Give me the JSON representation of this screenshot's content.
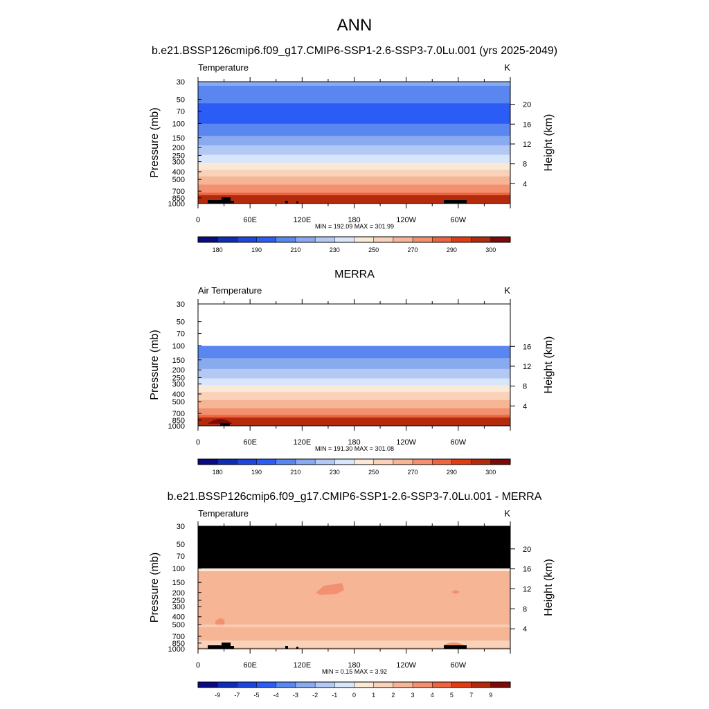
{
  "page": {
    "title": "ANN"
  },
  "chart_data": [
    {
      "type": "heatmap",
      "title": "b.e21.BSSP126cmip6.f09_g17.CMIP6-SSP1-2.6-SSP3-7.0Lu.001 (yrs 2025-2049)",
      "left_label": "Temperature",
      "units": "K",
      "ylabel": "Pressure (mb)",
      "ylabel_right": "Height (km)",
      "pressure_ticks": [
        "30",
        "50",
        "70",
        "100",
        "150",
        "200",
        "250",
        "300",
        "400",
        "500",
        "700",
        "850",
        "1000"
      ],
      "height_ticks": [
        "20",
        "16",
        "12",
        "8",
        "4"
      ],
      "x_ticks": [
        "0",
        "60E",
        "120E",
        "180",
        "120W",
        "60W"
      ],
      "stats": "MIN = 192.09  MAX = 301.99",
      "colorbar_labels": [
        "180",
        "190",
        "210",
        "230",
        "250",
        "270",
        "290",
        "300"
      ],
      "field_range": [
        192.09,
        301.99
      ]
    },
    {
      "type": "heatmap",
      "title": "MERRA",
      "left_label": "Air Temperature",
      "units": "K",
      "ylabel": "Pressure (mb)",
      "ylabel_right": "Height (km)",
      "pressure_ticks": [
        "30",
        "50",
        "70",
        "100",
        "150",
        "200",
        "250",
        "300",
        "400",
        "500",
        "700",
        "850",
        "1000"
      ],
      "height_ticks": [
        "16",
        "12",
        "8",
        "4"
      ],
      "x_ticks": [
        "0",
        "60E",
        "120E",
        "180",
        "120W",
        "60W"
      ],
      "stats": "MIN = 191.30  MAX = 301.08",
      "colorbar_labels": [
        "180",
        "190",
        "210",
        "230",
        "250",
        "270",
        "290",
        "300"
      ],
      "field_range": [
        191.3,
        301.08
      ],
      "data_top_pressure": 100
    },
    {
      "type": "heatmap",
      "title": "b.e21.BSSP126cmip6.f09_g17.CMIP6-SSP1-2.6-SSP3-7.0Lu.001 - MERRA",
      "left_label": "Temperature",
      "units": "K",
      "ylabel": "Pressure (mb)",
      "ylabel_right": "Height (km)",
      "pressure_ticks": [
        "30",
        "50",
        "70",
        "100",
        "150",
        "200",
        "250",
        "300",
        "400",
        "500",
        "700",
        "850",
        "1000"
      ],
      "height_ticks": [
        "20",
        "16",
        "12",
        "8",
        "4"
      ],
      "x_ticks": [
        "0",
        "60E",
        "120E",
        "180",
        "120W",
        "60W"
      ],
      "stats": "MIN =   0.15  MAX =   3.92",
      "colorbar_labels": [
        "-9",
        "-7",
        "-5",
        "-4",
        "-3",
        "-2",
        "-1",
        "0",
        "1",
        "2",
        "3",
        "4",
        "5",
        "7",
        "9"
      ],
      "field_range": [
        0.15,
        3.92
      ],
      "missing_above_pressure": 100
    }
  ],
  "colors": {
    "temp_palette": [
      "#0a0a82",
      "#0f2db4",
      "#1e46dc",
      "#2b5cf5",
      "#5a86f0",
      "#8aaaf0",
      "#b4c8f5",
      "#d7e6fa",
      "#fbe9d8",
      "#f9d2b9",
      "#f6b595",
      "#f29070",
      "#ec6440",
      "#e03c14",
      "#b42a0c",
      "#7d0a0a"
    ],
    "diff_palette": [
      "#0a0a82",
      "#0f2db4",
      "#1e46dc",
      "#2b5cf5",
      "#5a86f0",
      "#8aaaf0",
      "#b4c8f5",
      "#d7e6fa",
      "#fbe9d8",
      "#f9d2b9",
      "#f6b595",
      "#f29070",
      "#ec6440",
      "#e03c14",
      "#b42a0c",
      "#7d0a0a"
    ],
    "missing": "#000000"
  }
}
